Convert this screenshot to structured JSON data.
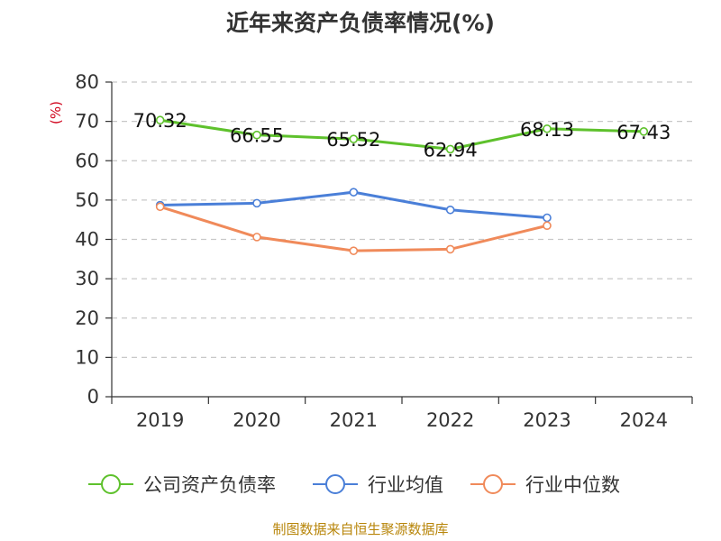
{
  "chart_data": {
    "type": "line",
    "title": "近年来资产负债率情况(%)",
    "ylabel": "(%)",
    "ylim": [
      0,
      80
    ],
    "yticks": [
      0,
      10,
      20,
      30,
      40,
      50,
      60,
      70,
      80
    ],
    "categories": [
      "2019",
      "2020",
      "2021",
      "2022",
      "2023",
      "2024"
    ],
    "grid": "horizontal dashed",
    "legend_position": "bottom",
    "series": [
      {
        "name": "公司资产负债率",
        "color": "#5ec12c",
        "values": [
          70.32,
          66.55,
          65.52,
          62.94,
          68.13,
          67.43
        ],
        "labels": [
          "70.32",
          "66.55",
          "65.52",
          "62.94",
          "68.13",
          "67.43"
        ]
      },
      {
        "name": "行业均值",
        "color": "#4a7fd8",
        "values": [
          48.7,
          49.2,
          52.0,
          47.5,
          45.5,
          null
        ]
      },
      {
        "name": "行业中位数",
        "color": "#f08a5a",
        "values": [
          48.3,
          40.6,
          37.1,
          37.5,
          43.5,
          null
        ]
      }
    ],
    "source": "制图数据来自恒生聚源数据库"
  }
}
